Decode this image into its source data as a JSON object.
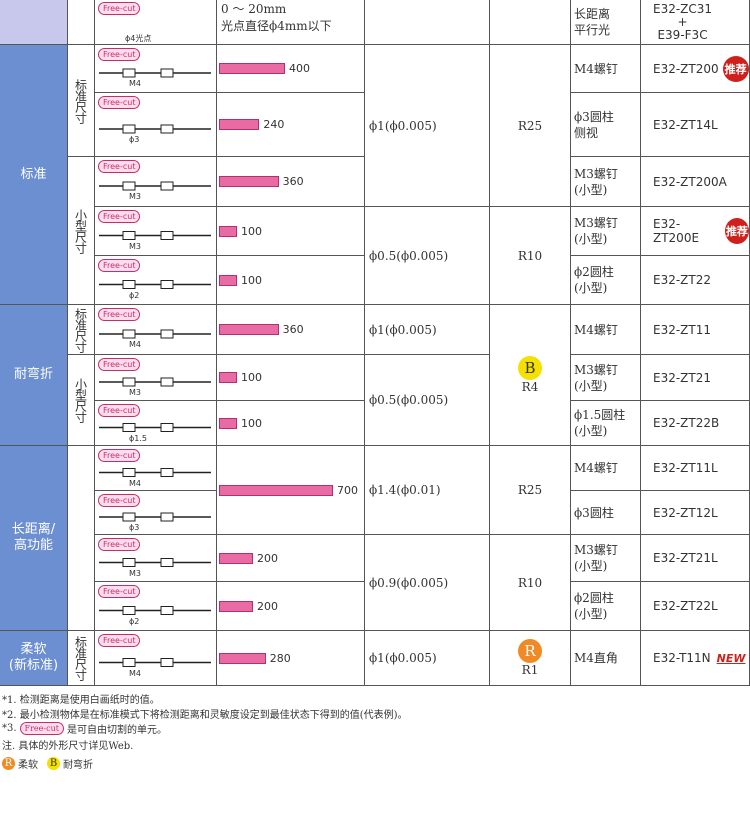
{
  "top_row": {
    "free_cut": "Free-cut",
    "diagram_label": "ϕ4光点",
    "range": "0 ～ 20mm",
    "spot": "光点直径ϕ4mm以下",
    "type": [
      "长距离",
      "平行光"
    ],
    "model": [
      "E32-ZC31",
      "+",
      "E39-F3C"
    ]
  },
  "free_cut": "Free-cut",
  "rows": [
    {
      "diagram_label": "M4",
      "type": [
        "M4螺钉"
      ],
      "model": "E32-ZT200",
      "badge": "推荐"
    },
    {
      "diagram_label": "ϕ3",
      "type": [
        "ϕ3圆柱",
        "侧视"
      ],
      "model": "E32-ZT14L"
    },
    {
      "diagram_label": "M3",
      "type": [
        "M3螺钉",
        "(小型)"
      ],
      "model": "E32-ZT200A"
    },
    {
      "diagram_label": "M3",
      "type": [
        "M3螺钉",
        "(小型)"
      ],
      "model": "E32-ZT200E",
      "badge": "推荐"
    },
    {
      "diagram_label": "ϕ2",
      "type": [
        "ϕ2圆柱",
        "(小型)"
      ],
      "model": "E32-ZT22"
    },
    {
      "diagram_label": "M4",
      "type": [
        "M4螺钉"
      ],
      "model": "E32-ZT11"
    },
    {
      "diagram_label": "M3",
      "type": [
        "M3螺钉",
        "(小型)"
      ],
      "model": "E32-ZT21"
    },
    {
      "diagram_label": "ϕ1.5",
      "type": [
        "ϕ1.5圆柱",
        "(小型)"
      ],
      "model": "E32-ZT22B"
    },
    {
      "diagram_label": "M4",
      "type": [
        "M4螺钉"
      ],
      "model": "E32-ZT11L"
    },
    {
      "diagram_label": "ϕ3",
      "type": [
        "ϕ3圆柱"
      ],
      "model": "E32-ZT12L"
    },
    {
      "diagram_label": "M3",
      "type": [
        "M3螺钉",
        "(小型)"
      ],
      "model": "E32-ZT21L"
    },
    {
      "diagram_label": "ϕ2",
      "type": [
        "ϕ2圆柱",
        "(小型)"
      ],
      "model": "E32-ZT22L"
    },
    {
      "diagram_label": "M4",
      "type": [
        "M4直角"
      ],
      "model": "E32-T11N",
      "new": "NEW"
    }
  ],
  "distances": [
    {
      "value": 400,
      "span": 1
    },
    {
      "value": 240,
      "span": 1
    },
    {
      "value": 360,
      "span": 1
    },
    {
      "value": 100,
      "span": 1
    },
    {
      "value": 100,
      "span": 1
    },
    {
      "value": 360,
      "span": 1
    },
    {
      "value": 100,
      "span": 1
    },
    {
      "value": 100,
      "span": 1
    },
    {
      "value": 700,
      "span": 2
    },
    {
      "value": 200,
      "span": 1
    },
    {
      "value": 200,
      "span": 1
    },
    {
      "value": 280,
      "span": 1
    }
  ],
  "categories": [
    {
      "lines": [
        "标准"
      ],
      "span": 5
    },
    {
      "lines": [
        "耐弯折"
      ],
      "span": 3
    },
    {
      "lines": [
        "长距离/",
        "高功能"
      ],
      "span": 4
    },
    {
      "lines": [
        "柔软",
        "(新标准)"
      ],
      "span": 1
    }
  ],
  "sizes": [
    {
      "label": "标准尺寸",
      "span": 2
    },
    {
      "label": "小型尺寸",
      "span": 3
    },
    {
      "label": "标准尺寸",
      "span": 1
    },
    {
      "label": "小型尺寸",
      "span": 2
    },
    {
      "span": 4
    },
    {
      "label": "标准尺寸",
      "span": 1
    }
  ],
  "spots": [
    {
      "label": "ϕ1(ϕ0.005)",
      "span": 3
    },
    {
      "label": "ϕ0.5(ϕ0.005)",
      "span": 2
    },
    {
      "label": "ϕ1(ϕ0.005)",
      "span": 1
    },
    {
      "label": "ϕ0.5(ϕ0.005)",
      "span": 2
    },
    {
      "label": "ϕ1.4(ϕ0.01)",
      "span": 2
    },
    {
      "label": "ϕ0.9(ϕ0.005)",
      "span": 2
    },
    {
      "label": "ϕ1(ϕ0.005)",
      "span": 1
    }
  ],
  "radii": [
    {
      "label": "R25",
      "span": 3
    },
    {
      "label": "R10",
      "span": 2
    },
    {
      "icon": "B",
      "label": "R4",
      "span": 3
    },
    {
      "label": "R25",
      "span": 2
    },
    {
      "label": "R10",
      "span": 2
    },
    {
      "icon": "R",
      "label": "R1",
      "span": 1
    }
  ],
  "notes": [
    "*1. 检测距离是使用白画纸时的值。",
    "*2. 最小检测物体是在标准模式下将检测距离和灵敏度设定到最佳状态下得到的值(代表例)。"
  ],
  "note3": {
    "prefix": "*3.",
    "suffix": "是可自由切割的单元。"
  },
  "note4": "注. 具体的外形尺寸详见Web.",
  "legend": [
    {
      "icon": "R",
      "label": "柔软"
    },
    {
      "icon": "B",
      "label": "耐弯折"
    }
  ]
}
